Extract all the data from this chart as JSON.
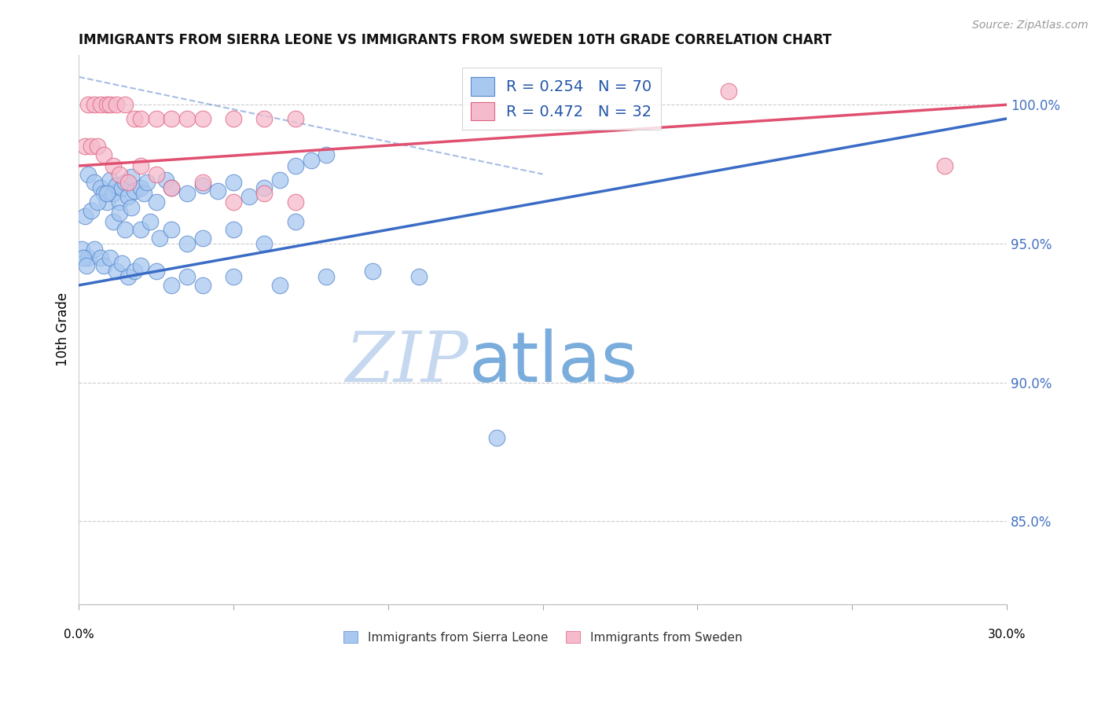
{
  "title": "IMMIGRANTS FROM SIERRA LEONE VS IMMIGRANTS FROM SWEDEN 10TH GRADE CORRELATION CHART",
  "source": "Source: ZipAtlas.com",
  "ylabel": "10th Grade",
  "y_ticks": [
    100.0,
    95.0,
    90.0,
    85.0
  ],
  "x_min": 0.0,
  "x_max": 30.0,
  "y_min": 82.0,
  "y_max": 101.8,
  "legend_r1": "R = 0.254",
  "legend_n1": "N = 70",
  "legend_r2": "R = 0.472",
  "legend_n2": "N = 32",
  "sierra_leone_color": "#A8C8F0",
  "sweden_color": "#F5BBCC",
  "sierra_leone_edge_color": "#5588CC",
  "sweden_edge_color": "#E06080",
  "sierra_leone_trend_color": "#3B6CC5",
  "sweden_trend_color": "#E05070",
  "watermark_zip_color": "#C5D8F0",
  "watermark_atlas_color": "#7AACDC",
  "background_color": "#FFFFFF",
  "grid_color": "#CCCCCC",
  "right_axis_color": "#4472C4",
  "legend_text_color": "#2255AA",
  "sierra_leone_x": [
    0.3,
    0.5,
    0.7,
    0.8,
    0.9,
    1.0,
    1.1,
    1.2,
    1.3,
    1.4,
    1.5,
    1.6,
    1.7,
    1.8,
    2.0,
    2.1,
    2.2,
    2.5,
    2.8,
    3.0,
    3.5,
    4.0,
    4.5,
    5.0,
    5.5,
    6.0,
    6.5,
    7.0,
    7.5,
    8.0,
    0.2,
    0.4,
    0.6,
    0.9,
    1.1,
    1.3,
    1.5,
    1.7,
    2.0,
    2.3,
    2.6,
    3.0,
    3.5,
    4.0,
    5.0,
    6.0,
    7.0,
    0.1,
    0.3,
    0.5,
    0.7,
    0.8,
    1.0,
    1.2,
    1.4,
    1.6,
    1.8,
    2.0,
    2.5,
    3.0,
    3.5,
    4.0,
    5.0,
    6.5,
    8.0,
    9.5,
    11.0,
    13.5,
    0.15,
    0.25
  ],
  "sierra_leone_y": [
    97.5,
    97.2,
    97.0,
    96.8,
    96.5,
    97.3,
    96.8,
    97.1,
    96.5,
    97.0,
    97.2,
    96.7,
    97.4,
    96.9,
    97.0,
    96.8,
    97.2,
    96.5,
    97.3,
    97.0,
    96.8,
    97.1,
    96.9,
    97.2,
    96.7,
    97.0,
    97.3,
    97.8,
    98.0,
    98.2,
    96.0,
    96.2,
    96.5,
    96.8,
    95.8,
    96.1,
    95.5,
    96.3,
    95.5,
    95.8,
    95.2,
    95.5,
    95.0,
    95.2,
    95.5,
    95.0,
    95.8,
    94.8,
    94.5,
    94.8,
    94.5,
    94.2,
    94.5,
    94.0,
    94.3,
    93.8,
    94.0,
    94.2,
    94.0,
    93.5,
    93.8,
    93.5,
    93.8,
    93.5,
    93.8,
    94.0,
    93.8,
    88.0,
    94.5,
    94.2
  ],
  "sweden_x": [
    0.3,
    0.5,
    0.7,
    0.9,
    1.0,
    1.2,
    1.5,
    1.8,
    2.0,
    2.5,
    3.0,
    3.5,
    4.0,
    5.0,
    6.0,
    7.0,
    0.2,
    0.4,
    0.6,
    0.8,
    1.1,
    1.3,
    1.6,
    2.0,
    2.5,
    3.0,
    4.0,
    5.0,
    6.0,
    7.0,
    21.0,
    28.0
  ],
  "sweden_y": [
    100.0,
    100.0,
    100.0,
    100.0,
    100.0,
    100.0,
    100.0,
    99.5,
    99.5,
    99.5,
    99.5,
    99.5,
    99.5,
    99.5,
    99.5,
    99.5,
    98.5,
    98.5,
    98.5,
    98.2,
    97.8,
    97.5,
    97.2,
    97.8,
    97.5,
    97.0,
    97.2,
    96.5,
    96.8,
    96.5,
    100.5,
    97.8
  ],
  "trend_sl_x0": 0.0,
  "trend_sl_y0": 93.5,
  "trend_sl_x1": 30.0,
  "trend_sl_y1": 99.5,
  "trend_sw_x0": 0.0,
  "trend_sw_y0": 97.8,
  "trend_sw_x1": 30.0,
  "trend_sw_y1": 100.0,
  "dash_x0": 0.0,
  "dash_y0": 101.0,
  "dash_x1": 15.0,
  "dash_y1": 97.5
}
